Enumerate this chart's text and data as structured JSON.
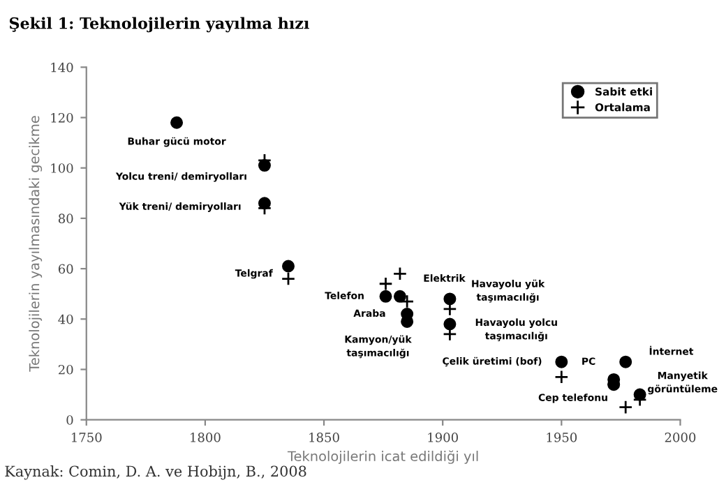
{
  "chart_data": {
    "type": "scatter",
    "title": "Şekil 1: Teknolojilerin yayılma hızı",
    "xlabel": "Teknolojilerin icat edildiği yıl",
    "ylabel": "Teknolojilerin yayılmasındaki gecikme",
    "xlim": [
      1750,
      2000
    ],
    "xticks": [
      1750,
      1800,
      1850,
      1900,
      1950,
      2000
    ],
    "ylim": [
      0,
      140
    ],
    "yticks": [
      0,
      20,
      40,
      60,
      80,
      100,
      120,
      140
    ],
    "grid": false,
    "legend": "top right",
    "series": [
      {
        "name": "Sabit etki",
        "color": "#000000",
        "marker": "circle",
        "x": [
          1788,
          1825,
          1825,
          1835,
          1876,
          1882,
          1885,
          1885,
          1903,
          1903,
          1950,
          1977,
          1972,
          1972,
          1983
        ],
        "values": [
          118,
          101,
          86,
          61,
          49,
          49,
          42,
          39,
          48,
          38,
          23,
          23,
          16,
          14,
          10
        ]
      },
      {
        "name": "Ortalama",
        "color": "#000000",
        "marker": "cross",
        "x": [
          1825,
          1825,
          1835,
          1876,
          1882,
          1885,
          1903,
          1903,
          1950,
          1972,
          1977,
          1983
        ],
        "values": [
          103,
          84,
          56,
          54,
          58,
          47,
          44,
          34,
          17,
          14,
          5,
          8
        ]
      }
    ],
    "annotations": [
      {
        "text": "Buhar gücü motor",
        "x": 1788,
        "y": 118
      },
      {
        "text": "Yolcu treni/ demiryolları",
        "x": 1825,
        "y": 101
      },
      {
        "text": "Yük treni/ demiryolları",
        "x": 1825,
        "y": 86
      },
      {
        "text": "Telgraf",
        "x": 1835,
        "y": 61
      },
      {
        "text": "Telefon",
        "x": 1876,
        "y": 49
      },
      {
        "text": "Araba",
        "x": 1885,
        "y": 42
      },
      {
        "text": "Kamyon/yük\ntaşımacılığı",
        "x": 1885,
        "y": 39
      },
      {
        "text": "Elektrik",
        "x": 1882,
        "y": 49
      },
      {
        "text": "Havayolu yük\ntaşımacılığı",
        "x": 1903,
        "y": 48
      },
      {
        "text": "Havayolu yolcu\ntaşımacılığı",
        "x": 1903,
        "y": 38
      },
      {
        "text": "Çelik üretimi (bof)",
        "x": 1950,
        "y": 23
      },
      {
        "text": "Cep telefonu",
        "x": 1950,
        "y": 17
      },
      {
        "text": "PC",
        "x": 1972,
        "y": 16
      },
      {
        "text": "İnternet",
        "x": 1977,
        "y": 23
      },
      {
        "text": "Manyetik\ngörüntüleme",
        "x": 1983,
        "y": 10
      },
      "Kaynak: Comin, D. A. ve Hobijn, B., 2008"
    ]
  }
}
